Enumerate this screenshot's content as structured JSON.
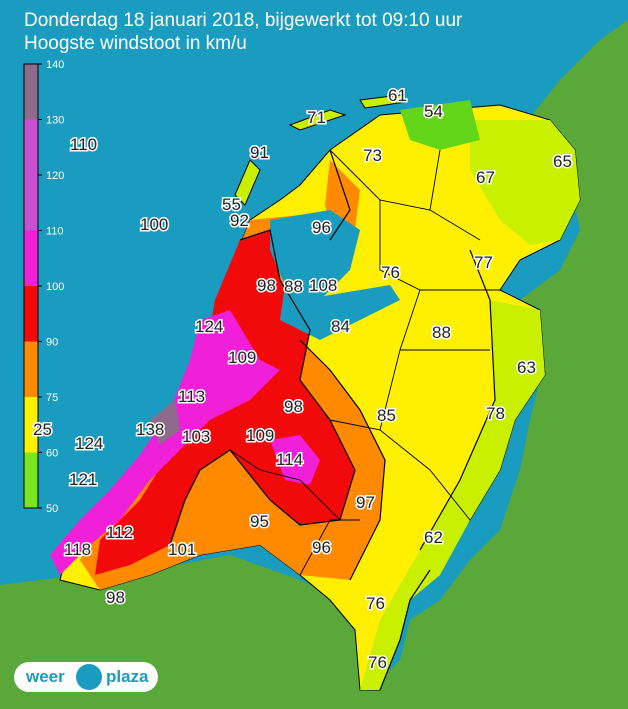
{
  "header": {
    "line1": "Donderdag 18 januari 2018, bijgewerkt tot 09:10 uur",
    "line2": "Hoogste windstoot in km/u"
  },
  "legend": {
    "ticks": [
      "140",
      "130",
      "120",
      "110",
      "100",
      "90",
      "75",
      "60",
      "50"
    ],
    "bands": [
      {
        "from": 130,
        "to": 140,
        "color": "#8e6a8c"
      },
      {
        "from": 110,
        "to": 130,
        "color": "#c94fd0"
      },
      {
        "from": 100,
        "to": 110,
        "color": "#f01fd8"
      },
      {
        "from": 90,
        "to": 100,
        "color": "#f20a0a"
      },
      {
        "from": 75,
        "to": 90,
        "color": "#ff8a00"
      },
      {
        "from": 60,
        "to": 75,
        "color": "#fff000"
      },
      {
        "from": 50,
        "to": 60,
        "color": "#7be51e"
      }
    ]
  },
  "colors": {
    "sea": "#1a9bc0",
    "land_outside": "#5aa83a"
  },
  "labels": [
    {
      "text": "61"
    },
    {
      "text": "54"
    },
    {
      "text": "71"
    },
    {
      "text": "91"
    },
    {
      "text": "73"
    },
    {
      "text": "65"
    },
    {
      "text": "67"
    },
    {
      "text": "110"
    },
    {
      "text": "55"
    },
    {
      "text": "92"
    },
    {
      "text": "100"
    },
    {
      "text": "96"
    },
    {
      "text": "77"
    },
    {
      "text": "76"
    },
    {
      "text": "98"
    },
    {
      "text": "88"
    },
    {
      "text": "108"
    },
    {
      "text": "124"
    },
    {
      "text": "84"
    },
    {
      "text": "88"
    },
    {
      "text": "109"
    },
    {
      "text": "63"
    },
    {
      "text": "113"
    },
    {
      "text": "98"
    },
    {
      "text": "85"
    },
    {
      "text": "78"
    },
    {
      "text": "25"
    },
    {
      "text": "138"
    },
    {
      "text": "103"
    },
    {
      "text": "109"
    },
    {
      "text": "124"
    },
    {
      "text": "114"
    },
    {
      "text": "121"
    },
    {
      "text": "97"
    },
    {
      "text": "112"
    },
    {
      "text": "95"
    },
    {
      "text": "62"
    },
    {
      "text": "118"
    },
    {
      "text": "101"
    },
    {
      "text": "96"
    },
    {
      "text": "76"
    },
    {
      "text": "98"
    },
    {
      "text": "76"
    }
  ],
  "logo": {
    "left": "weer",
    "right": "plaza"
  }
}
